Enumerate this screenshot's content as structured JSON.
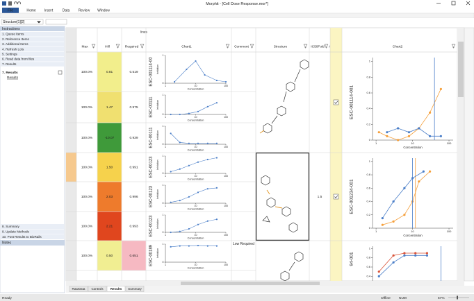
{
  "window": {
    "title": "Morphit - [Cell Dose Response.mor*]"
  },
  "menu": [
    "File",
    "Home",
    "Insert",
    "Data",
    "Review",
    "Window"
  ],
  "name_box": "Structure[1][2]",
  "instructions": {
    "header": "Instructions",
    "items": [
      "1. Queue Items",
      "2. Reference Items",
      "3. Additional Items",
      "4. Refresh Lots",
      "5. Settings",
      "6. Read data from files",
      "7. Results"
    ],
    "current": "7. Results",
    "link": "Results",
    "bottom_items": [
      "8. Summary",
      "9. Update Methods",
      "10. Post Results to BioRails"
    ]
  },
  "notes": {
    "header": "Notes"
  },
  "grid": {
    "group_header": "lines",
    "columns": [
      "Max",
      "Hill",
      "Required",
      "Chart1",
      "Comment",
      "Structure",
      "IC50Fold",
      "Accept",
      "Chart2"
    ],
    "chart1_axes": {
      "xlim": [
        1,
        100
      ],
      "ylim": [
        0,
        1
      ],
      "xticks": [
        1,
        10,
        100
      ],
      "yticks": [
        0,
        1
      ],
      "x_label": "Concentration",
      "y_label": "Inhibition",
      "log_x": true,
      "color": "#4a7ec8"
    },
    "chart2_axes": {
      "xlim": [
        0.8,
        130
      ],
      "ylim": [
        0,
        1.05
      ],
      "xticks": [
        1,
        10,
        100
      ],
      "yticks": [
        0,
        0.2,
        0.4,
        0.6,
        0.8,
        1
      ],
      "x_label": "Concentration",
      "log_x": true
    },
    "rows": [
      {
        "max": "100.0%",
        "hill": "0.81",
        "hill_color": "#f2ee8c",
        "required": "0.519",
        "chart1": {
          "id": "ESC-001114-00",
          "x": [
            2,
            5,
            10,
            20,
            50,
            100
          ],
          "values": [
            0.05,
            0.5,
            0.8,
            0.3,
            0.1,
            0.05
          ]
        }
      },
      {
        "max": "100.0%",
        "hill": "1.47",
        "hill_color": "#f0e070",
        "required": "0.975",
        "chart1": {
          "id": "ESC-00111",
          "x": [
            1.5,
            3,
            6,
            12,
            25,
            50
          ],
          "values": [
            0,
            0,
            0.05,
            0.15,
            0.4,
            0.6
          ]
        }
      },
      {
        "max": "100.0%",
        "hill": "-10.07",
        "hill_color": "#3f9a3a",
        "required": "0.939",
        "chart1": {
          "id": "ESC-00111",
          "x": [
            1.5,
            3,
            6,
            12,
            25,
            50
          ],
          "values": [
            0.6,
            0.1,
            0.05,
            0.05,
            0.05,
            0.05
          ]
        }
      },
      {
        "max": "100.0%",
        "hill": "1.50",
        "hill_color": "#f6d24c",
        "required": "0.991",
        "chart1": {
          "id": "ESC-00123",
          "x": [
            1.5,
            3,
            6,
            12,
            25,
            50
          ],
          "values": [
            0.1,
            0.25,
            0.45,
            0.65,
            0.8,
            0.9
          ]
        }
      },
      {
        "max": "100.0%",
        "hill": "2.03",
        "hill_color": "#ee7b2c",
        "required": "0.996",
        "chart1": {
          "id": "ESC-00123",
          "x": [
            1.5,
            3,
            6,
            12,
            25,
            50
          ],
          "values": [
            0.05,
            0.15,
            0.35,
            0.6,
            0.8,
            0.85
          ]
        }
      },
      {
        "max": "100.0%",
        "hill": "2.21",
        "hill_color": "#e0461e",
        "required": "0.993",
        "chart1": {
          "id": "ESC-00123",
          "x": [
            1.5,
            3,
            6,
            12,
            25,
            50
          ],
          "values": [
            0,
            0.05,
            0.2,
            0.45,
            0.65,
            0.75
          ]
        }
      },
      {
        "max": "100.0%",
        "hill": "0.50",
        "hill_color": "#f1ee92",
        "required": "0.651",
        "required_color": "#f6b9c2",
        "comment": "Low Required",
        "chart1": {
          "id": "ESC-00189",
          "x": [
            1.5,
            3,
            6,
            12,
            25,
            50
          ],
          "values": [
            0.85,
            0.9,
            0.9,
            0.92,
            0.9,
            0.9
          ]
        }
      }
    ],
    "groups": [
      {
        "accept": true,
        "chart2": {
          "id": "ESC-001114-001",
          "series": [
            {
              "color": "#f5a03c",
              "x": [
                1.2,
                2,
                4,
                8,
                15,
                30,
                60
              ],
              "values": [
                0.1,
                0.05,
                0,
                0.05,
                0.15,
                0.35,
                0.65
              ]
            },
            {
              "color": "#4a7ec8",
              "x": [
                2,
                4,
                8,
                15,
                30,
                60
              ],
              "values": [
                0.1,
                0.15,
                0.1,
                0.15,
                0.05,
                0.05
              ],
              "ic50": 40
            }
          ]
        }
      },
      {
        "ic50fold": "1.5",
        "accept": true,
        "chart2": {
          "id": "ESC-001234-001",
          "series": [
            {
              "color": "#f5a03c",
              "x": [
                1.5,
                3,
                6,
                10,
                15,
                30
              ],
              "values": [
                0.05,
                0.1,
                0.2,
                0.4,
                0.7,
                0.85
              ],
              "ic50": 12
            },
            {
              "color": "#4a7ec8",
              "x": [
                1.5,
                3,
                6,
                10,
                20
              ],
              "values": [
                0.15,
                0.4,
                0.6,
                0.75,
                0.85
              ],
              "ic50": 10
            }
          ]
        }
      },
      {
        "chart2": {
          "id": "94-001",
          "series": [
            {
              "color": "#d9543a",
              "x": [
                1.2,
                3,
                6,
                12,
                25
              ],
              "values": [
                0.5,
                0.85,
                0.9,
                0.9,
                0.9
              ]
            },
            {
              "color": "#4a7ec8",
              "x": [
                1.2,
                3,
                6,
                12,
                25
              ],
              "values": [
                0.4,
                0.7,
                0.85,
                0.85,
                0.85
              ],
              "ic50": 60
            }
          ]
        }
      }
    ]
  },
  "sheet_tabs": [
    "RawData",
    "Controls",
    "Results",
    "Summary"
  ],
  "active_tab": 2,
  "status": {
    "left": "Ready",
    "items": [
      "Offline",
      "NUM",
      "57%"
    ]
  }
}
